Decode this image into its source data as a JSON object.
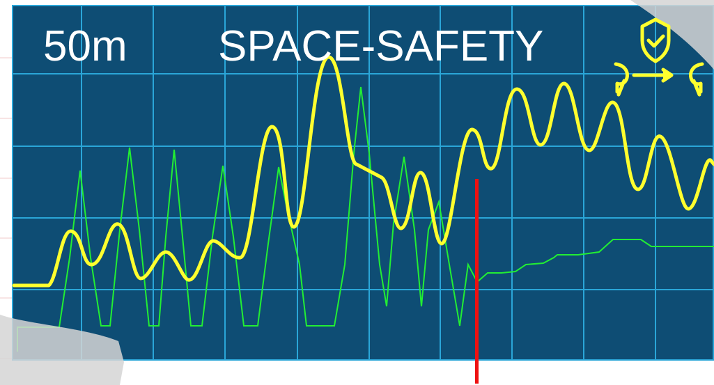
{
  "header": {
    "distance": "50m",
    "mode": "SPACE-SAFETY"
  },
  "icons": {
    "shield": "shield-check-icon",
    "coupling": "coupling-arrow-icon"
  },
  "colors": {
    "panel": "#0e4d74",
    "grid": "#2aa6d8",
    "primary_trace": "#ffff2e",
    "secondary_trace": "#22ee33",
    "marker": "#ee1111",
    "title_text": "#ffffff"
  }
}
